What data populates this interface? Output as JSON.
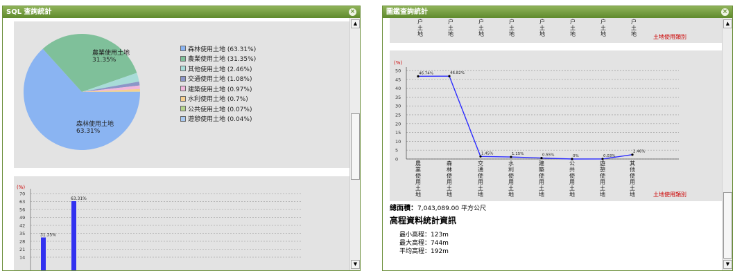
{
  "left_window": {
    "title": "SQL 查詢統計",
    "pie": {
      "label_agri": "農業使用土地",
      "pct_agri": "31.35%",
      "label_forest": "森林使用土地",
      "pct_forest": "63.31%"
    },
    "legend": [
      {
        "label": "森林使用土地 (63.31%)",
        "color": "#8ab4f2"
      },
      {
        "label": "農業使用土地 (31.35%)",
        "color": "#7fc09a"
      },
      {
        "label": "其他使用土地 (2.46%)",
        "color": "#a8dcd8"
      },
      {
        "label": "交通使用土地 (1.08%)",
        "color": "#8c96c8"
      },
      {
        "label": "建築使用土地 (0.97%)",
        "color": "#f1b7dc"
      },
      {
        "label": "水利使用土地 (0.7%)",
        "color": "#f6cf8e"
      },
      {
        "label": "公共使用土地 (0.07%)",
        "color": "#b4d38c"
      },
      {
        "label": "遊憩使用土地 (0.04%)",
        "color": "#a8c8f0"
      }
    ],
    "bar_chart": {
      "unit": "(%)",
      "ticks": [
        "70",
        "63",
        "56",
        "49",
        "42",
        "35",
        "28",
        "21",
        "14"
      ],
      "bar_labels": [
        "31.35%",
        "63.31%"
      ]
    }
  },
  "right_window": {
    "title": "圖鑑查詢統計",
    "top_fragment_glyphs": [
      "户\n土\n地",
      "户\n土\n地",
      "户\n土\n地",
      "户\n土\n地",
      "户\n土\n地",
      "户\n土\n地",
      "户\n土\n地",
      "户\n土\n地"
    ],
    "top_axis_caption": "土地使用類別",
    "line_chart": {
      "unit": "(%)",
      "caption": "土地使用類別",
      "ticks": [
        "50",
        "45",
        "40",
        "35",
        "30",
        "25",
        "20",
        "15",
        "10",
        "5",
        "0"
      ],
      "point_labels": [
        "46.74%",
        "46.82%",
        "1.45%",
        "1.15%",
        "0.55%",
        "0%",
        "0.03%",
        "2.46%"
      ],
      "categories": [
        "農業使用土地",
        "森林使用土地",
        "交通使用土地",
        "水利使用土地",
        "建築使用土地",
        "公共使用土地",
        "遊憩使用土地",
        "其他使用土地"
      ]
    },
    "total_area_label": "總面積：",
    "total_area_value": "7,043,089.00 平方公尺",
    "elevation_title": "高程資料統計資訊",
    "elevation_min": "最小高程：123m",
    "elevation_max": "最大高程：744m",
    "elevation_avg": "平均高程：192m"
  },
  "chart_data": [
    {
      "type": "pie",
      "categories": [
        "森林使用土地",
        "農業使用土地",
        "其他使用土地",
        "交通使用土地",
        "建築使用土地",
        "水利使用土地",
        "公共使用土地",
        "遊憩使用土地"
      ],
      "values": [
        63.31,
        31.35,
        2.46,
        1.08,
        0.97,
        0.7,
        0.07,
        0.04
      ],
      "colors": [
        "#8ab4f2",
        "#7fc09a",
        "#a8dcd8",
        "#8c96c8",
        "#f1b7dc",
        "#f6cf8e",
        "#b4d38c",
        "#a8c8f0"
      ],
      "legend": "right"
    },
    {
      "type": "bar",
      "categories": [
        "",
        ""
      ],
      "values": [
        31.35,
        63.31
      ],
      "ylabel": "(%)",
      "ylim": [
        0,
        70
      ]
    },
    {
      "type": "line",
      "categories": [
        "農業使用土地",
        "森林使用土地",
        "交通使用土地",
        "水利使用土地",
        "建築使用土地",
        "公共使用土地",
        "遊憩使用土地",
        "其他使用土地"
      ],
      "values": [
        46.74,
        46.82,
        1.45,
        1.15,
        0.55,
        0,
        0.03,
        2.46
      ],
      "xlabel": "土地使用類別",
      "ylabel": "(%)",
      "ylim": [
        0,
        50
      ],
      "grid": true
    }
  ]
}
